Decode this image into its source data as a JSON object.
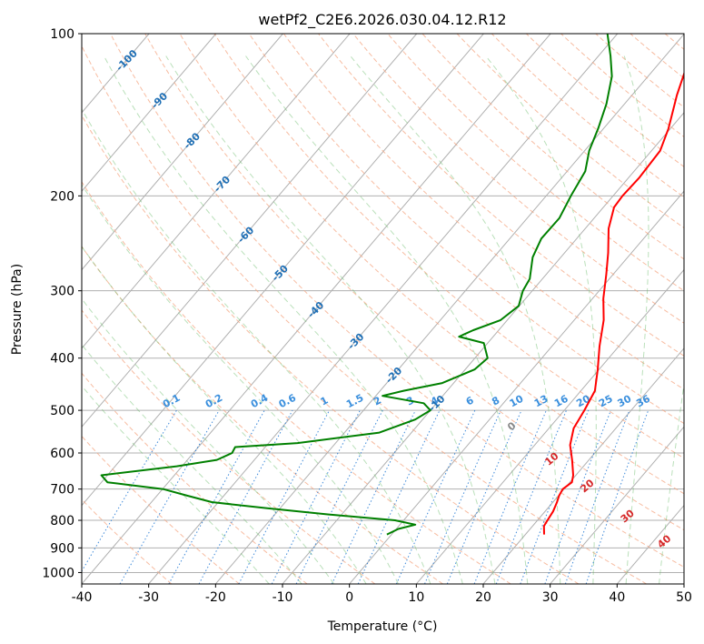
{
  "chart_data": {
    "type": "skew-t log-p",
    "title": "wetPf2_C2E6.2026.030.04.12.R12",
    "xlabel": "Temperature (°C)",
    "ylabel": "Pressure (hPa)",
    "xlim": [
      -40,
      50
    ],
    "ylim_hpa": [
      1050,
      100
    ],
    "x_ticks": [
      "-40",
      "-30",
      "-20",
      "-10",
      "0",
      "10",
      "20",
      "30",
      "40",
      "50"
    ],
    "x_tick_values": [
      -40,
      -30,
      -20,
      -10,
      0,
      10,
      20,
      30,
      40,
      50
    ],
    "y_ticks": [
      "100",
      "200",
      "300",
      "400",
      "500",
      "600",
      "700",
      "800",
      "900",
      "1000"
    ],
    "y_tick_values": [
      100,
      200,
      300,
      400,
      500,
      600,
      700,
      800,
      900,
      1000
    ],
    "dry_adiabat_labels": [
      "-100",
      "-90",
      "-80",
      "-70",
      "-60",
      "-50",
      "-40",
      "-30",
      "-20",
      "-10"
    ],
    "moist_adiabat_labels": [
      "0",
      "10",
      "20",
      "30",
      "40"
    ],
    "mixing_ratio_labels": [
      "0.1",
      "0.2",
      "0.4",
      "0.6",
      "1",
      "1.5",
      "2",
      "3",
      "4",
      "6",
      "8",
      "10",
      "13",
      "16",
      "20",
      "25",
      "30",
      "36"
    ],
    "series": [
      {
        "name": "temperature",
        "color": "#ff0000",
        "points": [
          [
            850,
            22.8
          ],
          [
            820,
            21.7
          ],
          [
            800,
            21.5
          ],
          [
            770,
            21.2
          ],
          [
            740,
            20.6
          ],
          [
            720,
            20.1
          ],
          [
            700,
            19.8
          ],
          [
            680,
            20.3
          ],
          [
            660,
            19.6
          ],
          [
            620,
            17.6
          ],
          [
            580,
            15.3
          ],
          [
            540,
            13.7
          ],
          [
            500,
            13.0
          ],
          [
            460,
            12.1
          ],
          [
            420,
            9.8
          ],
          [
            380,
            7.1
          ],
          [
            340,
            4.4
          ],
          [
            310,
            1.6
          ],
          [
            280,
            -1.0
          ],
          [
            255,
            -3.5
          ],
          [
            230,
            -6.5
          ],
          [
            210,
            -8.4
          ],
          [
            200,
            -8.6
          ],
          [
            185,
            -8.4
          ],
          [
            165,
            -8.7
          ],
          [
            150,
            -10.3
          ],
          [
            130,
            -13.3
          ],
          [
            110,
            -16.3
          ],
          [
            100,
            -18.9
          ]
        ]
      },
      {
        "name": "dewpoint",
        "color": "#008000",
        "points": [
          [
            850,
            -0.7
          ],
          [
            830,
            0.3
          ],
          [
            815,
            2.3
          ],
          [
            800,
            -1.3
          ],
          [
            780,
            -12.1
          ],
          [
            760,
            -21.9
          ],
          [
            740,
            -31.0
          ],
          [
            720,
            -35.5
          ],
          [
            700,
            -39.9
          ],
          [
            680,
            -49.1
          ],
          [
            660,
            -50.9
          ],
          [
            635,
            -40.8
          ],
          [
            618,
            -35.6
          ],
          [
            600,
            -34.2
          ],
          [
            585,
            -34.5
          ],
          [
            575,
            -25.7
          ],
          [
            550,
            -14.8
          ],
          [
            520,
            -11.1
          ],
          [
            500,
            -10.0
          ],
          [
            485,
            -11.9
          ],
          [
            470,
            -19.0
          ],
          [
            460,
            -16.5
          ],
          [
            445,
            -11.7
          ],
          [
            420,
            -8.6
          ],
          [
            400,
            -8.1
          ],
          [
            375,
            -10.6
          ],
          [
            365,
            -15.1
          ],
          [
            355,
            -13.8
          ],
          [
            340,
            -11.0
          ],
          [
            320,
            -10.1
          ],
          [
            300,
            -11.4
          ],
          [
            285,
            -11.9
          ],
          [
            260,
            -14.2
          ],
          [
            240,
            -15.3
          ],
          [
            220,
            -15.2
          ],
          [
            200,
            -16.3
          ],
          [
            180,
            -17.3
          ],
          [
            165,
            -19.3
          ],
          [
            150,
            -20.8
          ],
          [
            135,
            -22.7
          ],
          [
            120,
            -25.4
          ],
          [
            110,
            -28.2
          ],
          [
            100,
            -31.5
          ]
        ]
      }
    ]
  }
}
